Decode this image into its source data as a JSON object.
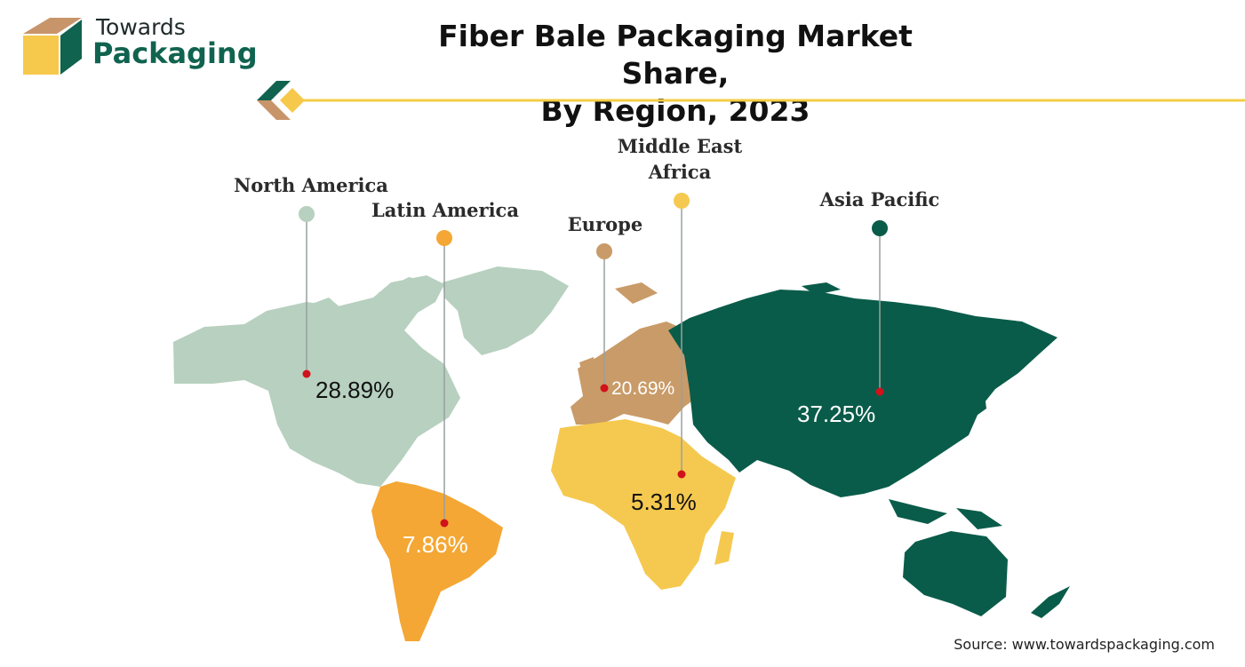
{
  "logo": {
    "line1": "Towards",
    "line2": "Packaging"
  },
  "title_line1": "Fiber Bale Packaging Market Share,",
  "title_line2": "By Region, 2023",
  "source": "Source: www.towardspackaging.com",
  "chart_data": {
    "type": "map",
    "title": "Fiber Bale Packaging Market Share, By Region, 2023",
    "unit": "%",
    "regions": [
      {
        "name": "North America",
        "value": 28.89,
        "label": "28.89%",
        "color": "#b7d0bf"
      },
      {
        "name": "Latin America",
        "value": 7.86,
        "label": "7.86%",
        "color": "#f4a734"
      },
      {
        "name": "Europe",
        "value": 20.69,
        "label": "20.69%",
        "color": "#c99b68"
      },
      {
        "name": "Middle East Africa",
        "value": 5.31,
        "label": "5.31%",
        "color": "#f5c94f"
      },
      {
        "name": "Asia Pacific",
        "value": 37.25,
        "label": "37.25%",
        "color": "#0a5c4a"
      }
    ]
  }
}
